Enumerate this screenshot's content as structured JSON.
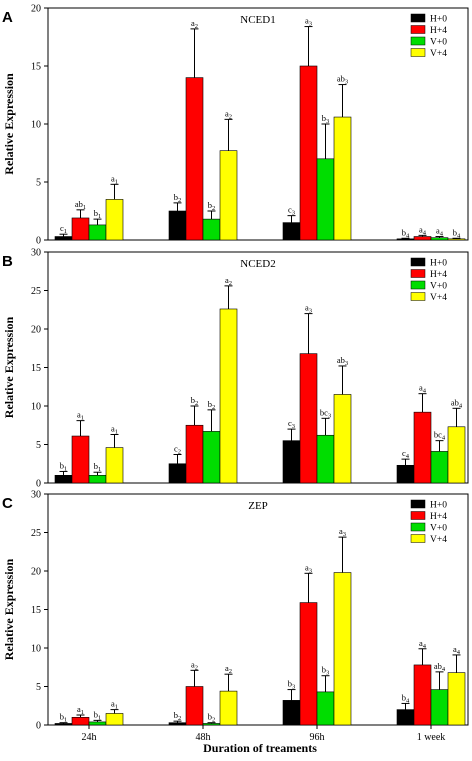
{
  "figure": {
    "xlabel": "Duration of treaments",
    "categories": [
      "24h",
      "48h",
      "96h",
      "1 week"
    ],
    "legend": [
      {
        "name": "H+0",
        "color": "#000000"
      },
      {
        "name": "H+4",
        "color": "#ff0000"
      },
      {
        "name": "V+0",
        "color": "#00dd00"
      },
      {
        "name": "V+4",
        "color": "#ffff00"
      }
    ]
  },
  "chart_data": [
    {
      "type": "bar",
      "panel": "A",
      "title": "NCED1",
      "ylabel": "Relative Expression",
      "ylim": [
        0,
        20
      ],
      "yticks": [
        0,
        5,
        10,
        15,
        20
      ],
      "categories": [
        "24h",
        "48h",
        "96h",
        "1 week"
      ],
      "series": [
        {
          "name": "H+0",
          "values": [
            0.3,
            2.5,
            1.5,
            0.1
          ],
          "errors": [
            0.2,
            0.7,
            0.6,
            0.05
          ],
          "labels": [
            "c1",
            "b2",
            "c3",
            "b4"
          ]
        },
        {
          "name": "H+4",
          "values": [
            1.9,
            14.0,
            15.0,
            0.3
          ],
          "errors": [
            0.7,
            4.2,
            3.4,
            0.1
          ],
          "labels": [
            "ab1",
            "a2",
            "a3",
            "a4"
          ]
        },
        {
          "name": "V+0",
          "values": [
            1.3,
            1.8,
            7.0,
            0.2
          ],
          "errors": [
            0.5,
            0.7,
            3.0,
            0.1
          ],
          "labels": [
            "b1",
            "b2",
            "b3",
            "a4"
          ]
        },
        {
          "name": "V+4",
          "values": [
            3.5,
            7.7,
            10.6,
            0.1
          ],
          "errors": [
            1.3,
            2.7,
            2.8,
            0.05
          ],
          "labels": [
            "a1",
            "a2",
            "ab3",
            "b4"
          ]
        }
      ]
    },
    {
      "type": "bar",
      "panel": "B",
      "title": "NCED2",
      "ylabel": "Relative Expression",
      "ylim": [
        0,
        30
      ],
      "yticks": [
        0,
        5,
        10,
        15,
        20,
        25,
        30
      ],
      "categories": [
        "24h",
        "48h",
        "96h",
        "1 week"
      ],
      "series": [
        {
          "name": "H+0",
          "values": [
            1.0,
            2.5,
            5.5,
            2.3
          ],
          "errors": [
            0.5,
            1.2,
            1.5,
            0.8
          ],
          "labels": [
            "b1",
            "c2",
            "c3",
            "c4"
          ]
        },
        {
          "name": "H+4",
          "values": [
            6.1,
            7.5,
            16.8,
            9.2
          ],
          "errors": [
            2.0,
            2.5,
            5.2,
            2.4
          ],
          "labels": [
            "a1",
            "b2",
            "a3",
            "a4"
          ]
        },
        {
          "name": "V+0",
          "values": [
            1.0,
            6.7,
            6.2,
            4.1
          ],
          "errors": [
            0.4,
            2.8,
            2.2,
            1.4
          ],
          "labels": [
            "b1",
            "b2",
            "bc3",
            "bc4"
          ]
        },
        {
          "name": "V+4",
          "values": [
            4.6,
            22.6,
            11.5,
            7.3
          ],
          "errors": [
            1.7,
            3.0,
            3.7,
            2.4
          ],
          "labels": [
            "a1",
            "a2",
            "ab3",
            "ab4"
          ]
        }
      ]
    },
    {
      "type": "bar",
      "panel": "C",
      "title": "ZEP",
      "ylabel": "Relative Expression",
      "ylim": [
        0,
        30
      ],
      "yticks": [
        0,
        5,
        10,
        15,
        20,
        25,
        30
      ],
      "categories": [
        "24h",
        "48h",
        "96h",
        "1 week"
      ],
      "series": [
        {
          "name": "H+0",
          "values": [
            0.2,
            0.3,
            3.2,
            2.0
          ],
          "errors": [
            0.1,
            0.2,
            1.4,
            0.8
          ],
          "labels": [
            "b1",
            "b2",
            "b3",
            "b4"
          ]
        },
        {
          "name": "H+4",
          "values": [
            1.0,
            5.0,
            15.9,
            7.8
          ],
          "errors": [
            0.3,
            2.1,
            3.8,
            2.1
          ],
          "labels": [
            "a1",
            "a2",
            "a3",
            "a4"
          ]
        },
        {
          "name": "V+0",
          "values": [
            0.4,
            0.2,
            4.3,
            4.6
          ],
          "errors": [
            0.2,
            0.1,
            2.1,
            2.3
          ],
          "labels": [
            "b1",
            "b2",
            "b3",
            "ab4"
          ]
        },
        {
          "name": "V+4",
          "values": [
            1.5,
            4.4,
            19.8,
            6.8
          ],
          "errors": [
            0.5,
            2.2,
            4.6,
            2.3
          ],
          "labels": [
            "a1",
            "a2",
            "a3",
            "a4"
          ]
        }
      ]
    }
  ]
}
